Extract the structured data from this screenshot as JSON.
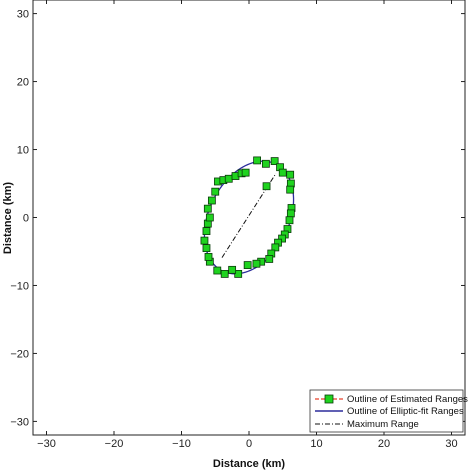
{
  "chart_data": {
    "type": "scatter",
    "xlabel": "Distance (km)",
    "ylabel": "Distance (km)",
    "xlim": [
      -32,
      32
    ],
    "ylim": [
      -32,
      32
    ],
    "xticks": [
      -30,
      -20,
      -10,
      0,
      10,
      20,
      30
    ],
    "yticks": [
      -30,
      -20,
      -10,
      0,
      10,
      20,
      30
    ],
    "xtick_labels": [
      "−30",
      "−20",
      "−10",
      "0",
      "10",
      "20",
      "30"
    ],
    "ytick_labels": [
      "−30",
      "−20",
      "−10",
      "0",
      "10",
      "20",
      "30"
    ],
    "grid": false,
    "legend_position": "bottom-right",
    "series": [
      {
        "name": "Outline of Estimated Ranges",
        "kind": "scatter",
        "line_color": "#e8412a",
        "marker_color": "#1fd31f",
        "marker_edge": "#0a3a0a",
        "points": [
          [
            1.2,
            8.4
          ],
          [
            2.5,
            7.9
          ],
          [
            3.8,
            8.3
          ],
          [
            4.6,
            7.4
          ],
          [
            5.0,
            6.6
          ],
          [
            6.1,
            6.3
          ],
          [
            6.2,
            5.0
          ],
          [
            6.1,
            4.1
          ],
          [
            6.3,
            1.4
          ],
          [
            6.2,
            0.6
          ],
          [
            6.0,
            -0.4
          ],
          [
            5.7,
            -1.7
          ],
          [
            5.3,
            -2.5
          ],
          [
            4.9,
            -3.1
          ],
          [
            4.3,
            -3.7
          ],
          [
            3.9,
            -4.4
          ],
          [
            3.3,
            -5.3
          ],
          [
            3.0,
            -6.1
          ],
          [
            1.8,
            -6.5
          ],
          [
            1.1,
            -6.8
          ],
          [
            -0.2,
            -7.0
          ],
          [
            -1.6,
            -8.3
          ],
          [
            -2.5,
            -7.7
          ],
          [
            -3.6,
            -8.3
          ],
          [
            -4.7,
            -7.8
          ],
          [
            -5.8,
            -6.5
          ],
          [
            -6.0,
            -5.8
          ],
          [
            -6.3,
            -4.5
          ],
          [
            -6.6,
            -3.4
          ],
          [
            -6.3,
            -2.0
          ],
          [
            -6.1,
            -0.9
          ],
          [
            -5.8,
            0.0
          ],
          [
            -6.1,
            1.3
          ],
          [
            -5.5,
            2.5
          ],
          [
            -5.0,
            3.8
          ],
          [
            -4.6,
            5.3
          ],
          [
            -3.8,
            5.5
          ],
          [
            -3.0,
            5.7
          ],
          [
            -2.0,
            6.1
          ],
          [
            -1.1,
            6.5
          ],
          [
            -0.5,
            6.6
          ],
          [
            2.6,
            4.6
          ]
        ]
      },
      {
        "name": "Outline of Elliptic-fit Ranges",
        "kind": "ellipse",
        "color": "#2c2c9c",
        "center": [
          0,
          0
        ],
        "semi_major": 8.8,
        "semi_minor": 5.9,
        "rotation_deg": 63
      },
      {
        "name": "Maximum Range",
        "kind": "line",
        "color": "#111111",
        "dash": "dash-dot",
        "points": [
          [
            -4.0,
            -5.9
          ],
          [
            4.0,
            6.5
          ]
        ]
      }
    ]
  }
}
